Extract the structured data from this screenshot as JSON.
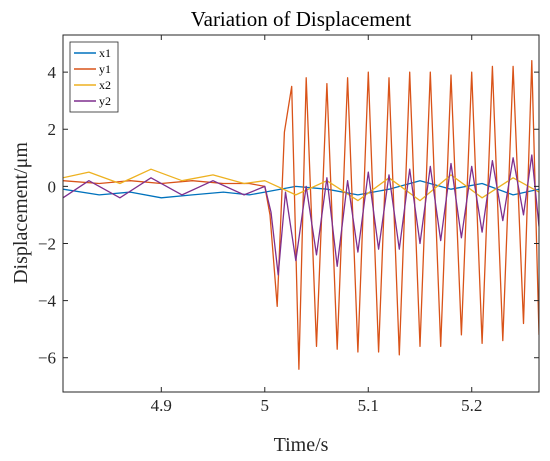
{
  "chart_data": {
    "type": "line",
    "title": "Variation of Displacement",
    "xlabel": "Time/s",
    "ylabel": "Displacement/μm",
    "xlim": [
      4.805,
      5.265
    ],
    "ylim": [
      -7.2,
      5.3
    ],
    "x_ticks": [
      4.9,
      5,
      5.1,
      5.2
    ],
    "x_tick_labels": [
      "4.9",
      "5",
      "5.1",
      "5.2"
    ],
    "y_ticks": [
      -6,
      -4,
      -2,
      0,
      2,
      4
    ],
    "y_tick_labels": [
      "−6",
      "−4",
      "−2",
      "0",
      "2",
      "4"
    ],
    "grid": false,
    "legend_position": "top-left",
    "series": [
      {
        "name": "x1",
        "color": "#0072BD",
        "points": [
          [
            4.805,
            -0.1
          ],
          [
            4.84,
            -0.3
          ],
          [
            4.87,
            -0.2
          ],
          [
            4.9,
            -0.4
          ],
          [
            4.93,
            -0.3
          ],
          [
            4.96,
            -0.2
          ],
          [
            4.985,
            -0.3
          ],
          [
            5.0,
            -0.2
          ],
          [
            5.03,
            0.0
          ],
          [
            5.06,
            -0.1
          ],
          [
            5.09,
            -0.3
          ],
          [
            5.12,
            -0.1
          ],
          [
            5.15,
            0.2
          ],
          [
            5.18,
            -0.1
          ],
          [
            5.21,
            0.1
          ],
          [
            5.24,
            -0.3
          ],
          [
            5.265,
            -0.1
          ]
        ]
      },
      {
        "name": "y1",
        "color": "#D95319",
        "points": [
          [
            4.805,
            0.2
          ],
          [
            4.84,
            0.1
          ],
          [
            4.87,
            0.2
          ],
          [
            4.9,
            0.1
          ],
          [
            4.93,
            0.2
          ],
          [
            4.96,
            0.1
          ],
          [
            4.985,
            0.1
          ],
          [
            5.0,
            0.0
          ],
          [
            5.005,
            -1.0
          ],
          [
            5.012,
            -4.2
          ],
          [
            5.019,
            1.9
          ],
          [
            5.026,
            3.5
          ],
          [
            5.033,
            -6.4
          ],
          [
            5.04,
            3.8
          ],
          [
            5.05,
            -5.6
          ],
          [
            5.06,
            3.6
          ],
          [
            5.07,
            -5.7
          ],
          [
            5.08,
            3.8
          ],
          [
            5.09,
            -5.8
          ],
          [
            5.1,
            4.0
          ],
          [
            5.11,
            -5.8
          ],
          [
            5.12,
            3.8
          ],
          [
            5.13,
            -5.9
          ],
          [
            5.14,
            4.0
          ],
          [
            5.15,
            -5.6
          ],
          [
            5.16,
            4.0
          ],
          [
            5.17,
            -5.6
          ],
          [
            5.18,
            3.9
          ],
          [
            5.19,
            -5.2
          ],
          [
            5.2,
            4.0
          ],
          [
            5.21,
            -5.5
          ],
          [
            5.22,
            4.2
          ],
          [
            5.23,
            -5.4
          ],
          [
            5.24,
            4.2
          ],
          [
            5.25,
            -4.8
          ],
          [
            5.258,
            4.4
          ],
          [
            5.265,
            -5.2
          ]
        ]
      },
      {
        "name": "x2",
        "color": "#EDB120",
        "points": [
          [
            4.805,
            0.3
          ],
          [
            4.83,
            0.5
          ],
          [
            4.86,
            0.1
          ],
          [
            4.89,
            0.6
          ],
          [
            4.92,
            0.2
          ],
          [
            4.95,
            0.4
          ],
          [
            4.98,
            0.1
          ],
          [
            5.0,
            0.2
          ],
          [
            5.03,
            -0.3
          ],
          [
            5.06,
            0.2
          ],
          [
            5.09,
            -0.5
          ],
          [
            5.12,
            0.3
          ],
          [
            5.15,
            -0.5
          ],
          [
            5.18,
            0.4
          ],
          [
            5.21,
            -0.4
          ],
          [
            5.24,
            0.3
          ],
          [
            5.265,
            -0.2
          ]
        ]
      },
      {
        "name": "y2",
        "color": "#7E2F8E",
        "points": [
          [
            4.805,
            -0.4
          ],
          [
            4.83,
            0.2
          ],
          [
            4.86,
            -0.4
          ],
          [
            4.89,
            0.3
          ],
          [
            4.92,
            -0.3
          ],
          [
            4.95,
            0.2
          ],
          [
            4.98,
            -0.3
          ],
          [
            5.0,
            0.0
          ],
          [
            5.006,
            -0.9
          ],
          [
            5.013,
            -3.1
          ],
          [
            5.02,
            -0.2
          ],
          [
            5.03,
            -2.6
          ],
          [
            5.04,
            0.0
          ],
          [
            5.05,
            -2.4
          ],
          [
            5.06,
            0.3
          ],
          [
            5.07,
            -2.8
          ],
          [
            5.08,
            0.2
          ],
          [
            5.09,
            -2.3
          ],
          [
            5.1,
            0.5
          ],
          [
            5.11,
            -2.2
          ],
          [
            5.12,
            0.4
          ],
          [
            5.13,
            -2.2
          ],
          [
            5.14,
            0.6
          ],
          [
            5.15,
            -2.0
          ],
          [
            5.16,
            0.7
          ],
          [
            5.17,
            -1.9
          ],
          [
            5.18,
            0.8
          ],
          [
            5.19,
            -1.8
          ],
          [
            5.2,
            0.7
          ],
          [
            5.21,
            -1.6
          ],
          [
            5.22,
            0.9
          ],
          [
            5.23,
            -1.2
          ],
          [
            5.24,
            1.0
          ],
          [
            5.25,
            -1.0
          ],
          [
            5.258,
            1.1
          ],
          [
            5.265,
            -1.4
          ]
        ]
      }
    ]
  }
}
